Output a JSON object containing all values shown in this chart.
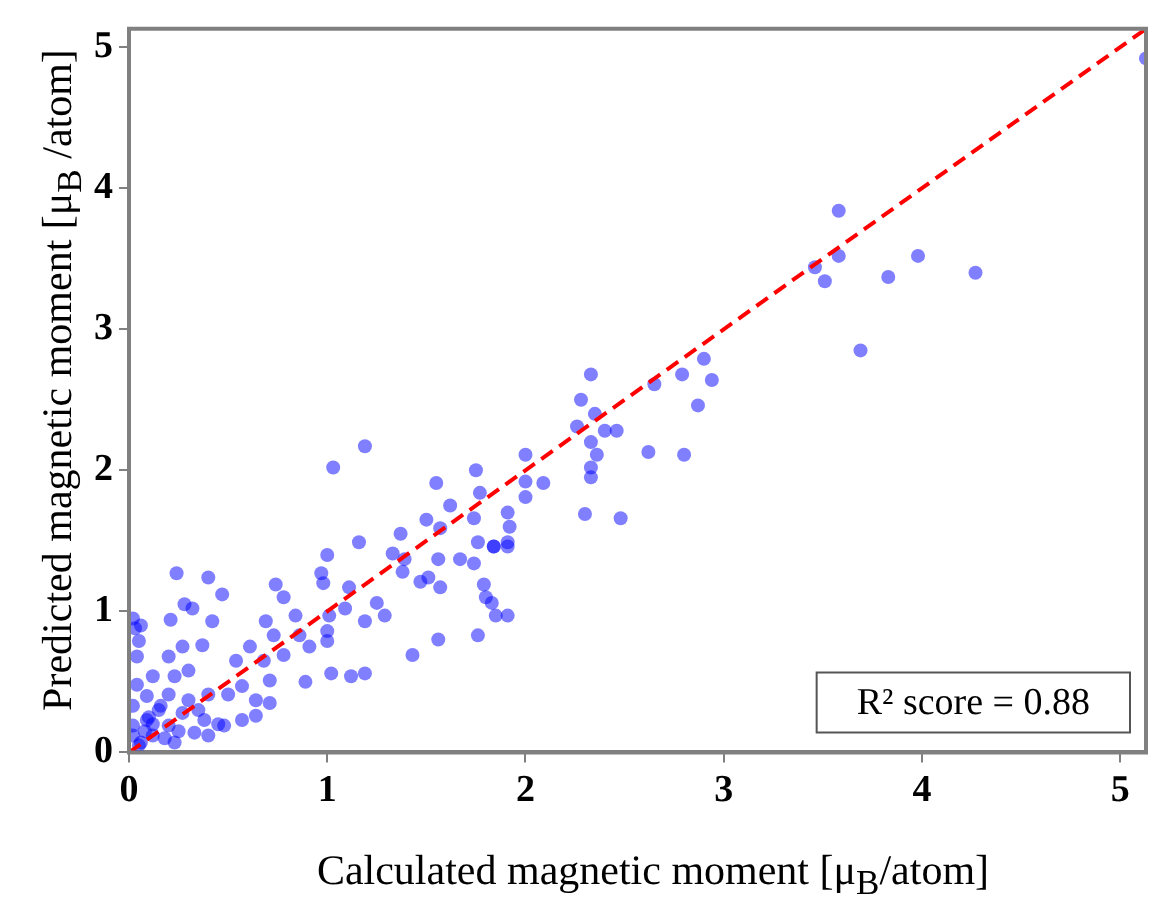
{
  "chart_data": {
    "type": "scatter",
    "xlabel": "Calculated magnetic moment [μ$_{B}$/atom]",
    "ylabel": "Predicted magnetic moment [μ$_{B}$ /atom]",
    "xlim": [
      0,
      5.13
    ],
    "ylim": [
      0,
      5.13
    ],
    "xticks": [
      0,
      1,
      2,
      3,
      4,
      5
    ],
    "yticks": [
      0,
      1,
      2,
      3,
      4,
      5
    ],
    "grid": false,
    "legend": false,
    "marker": "circle",
    "annotations": [
      "R² score = 0.88"
    ],
    "series": [
      {
        "type": "scatter",
        "color": "#0000ff",
        "x": [
          3.58,
          3.58,
          3.46,
          3.51,
          3.83,
          3.98,
          4.27,
          3.69,
          5.13,
          2.33,
          2.28,
          2.35,
          2.26,
          2.4,
          2.46,
          2.33,
          2.36,
          2.33,
          2.33,
          2.3,
          2.48,
          2.62,
          2.8,
          2.65,
          2.79,
          2.9,
          2.94,
          2.87,
          2.0,
          2.0,
          2.09,
          2.0,
          1.91,
          1.92,
          1.91,
          1.84,
          1.03,
          1.19,
          1.75,
          1.55,
          1.77,
          1.62,
          1.5,
          1.37,
          1.57,
          1.74,
          1.76,
          1.84,
          1.91,
          1.16,
          1.0,
          1.33,
          1.39,
          1.38,
          1.56,
          1.67,
          1.74,
          1.51,
          1.47,
          1.57,
          1.79,
          1.8,
          1.83,
          1.85,
          1.91,
          1.76,
          1.56,
          1.43,
          1.25,
          1.29,
          1.19,
          1.11,
          0.97,
          0.74,
          0.78,
          0.98,
          1.09,
          1.01,
          1.0,
          1.0,
          1.02,
          1.12,
          1.19,
          0.89,
          0.84,
          0.86,
          0.69,
          0.73,
          0.78,
          0.91,
          0.68,
          0.61,
          0.54,
          0.71,
          0.57,
          0.64,
          0.71,
          0.5,
          0.4,
          0.48,
          0.38,
          0.24,
          0.4,
          0.47,
          0.28,
          0.32,
          0.21,
          0.42,
          0.37,
          0.27,
          0.2,
          0.02,
          0.06,
          0.05,
          0.04,
          0.3,
          0.23,
          0.12,
          0.04,
          0.09,
          0.2,
          0.3,
          0.16,
          0.02,
          0.27,
          0.09,
          0.02,
          0.2,
          0.33,
          0.12,
          0.23,
          0.06,
          0.02,
          0.4,
          0.57,
          0.64,
          0.03,
          0.1,
          0.15,
          0.08,
          0.18,
          0.05,
          0.12,
          0.25,
          0.35,
          0.45
        ],
        "values": [
          3.84,
          3.52,
          3.44,
          3.34,
          3.37,
          3.52,
          3.4,
          2.85,
          4.92,
          2.68,
          2.5,
          2.4,
          2.31,
          2.28,
          2.28,
          2.2,
          2.11,
          2.02,
          1.95,
          1.69,
          1.66,
          2.13,
          2.11,
          2.61,
          2.68,
          2.79,
          2.64,
          2.46,
          2.11,
          1.92,
          1.91,
          1.81,
          1.7,
          1.6,
          1.46,
          1.46,
          2.02,
          2.17,
          2.0,
          1.91,
          1.84,
          1.75,
          1.65,
          1.55,
          1.59,
          1.66,
          1.49,
          1.46,
          1.49,
          1.49,
          1.4,
          1.41,
          1.37,
          1.28,
          1.37,
          1.37,
          1.34,
          1.24,
          1.21,
          1.17,
          1.19,
          1.1,
          1.06,
          0.97,
          0.97,
          0.83,
          0.8,
          0.69,
          1.06,
          0.97,
          0.93,
          1.17,
          1.27,
          1.19,
          1.1,
          1.2,
          1.02,
          0.97,
          0.86,
          0.79,
          0.56,
          0.54,
          0.56,
          0.5,
          0.97,
          0.83,
          0.93,
          0.83,
          0.69,
          0.75,
          0.65,
          0.75,
          0.65,
          0.51,
          0.47,
          0.37,
          0.35,
          0.41,
          0.41,
          0.19,
          0.23,
          1.27,
          1.24,
          1.12,
          1.05,
          1.02,
          0.94,
          0.93,
          0.76,
          0.75,
          0.68,
          0.95,
          0.9,
          0.79,
          0.68,
          0.58,
          0.54,
          0.54,
          0.48,
          0.4,
          0.41,
          0.37,
          0.33,
          0.33,
          0.28,
          0.23,
          0.19,
          0.19,
          0.14,
          0.12,
          0.07,
          0.07,
          0.12,
          0.12,
          0.23,
          0.26,
          0.88,
          0.25,
          0.3,
          0.15,
          0.1,
          0.05,
          0.2,
          0.15,
          0.3,
          0.2
        ]
      },
      {
        "type": "line",
        "color": "#ff0000",
        "line_style": "dashed",
        "marker": "none",
        "x": [
          0,
          5.13
        ],
        "values": [
          0,
          5.13
        ]
      }
    ]
  }
}
